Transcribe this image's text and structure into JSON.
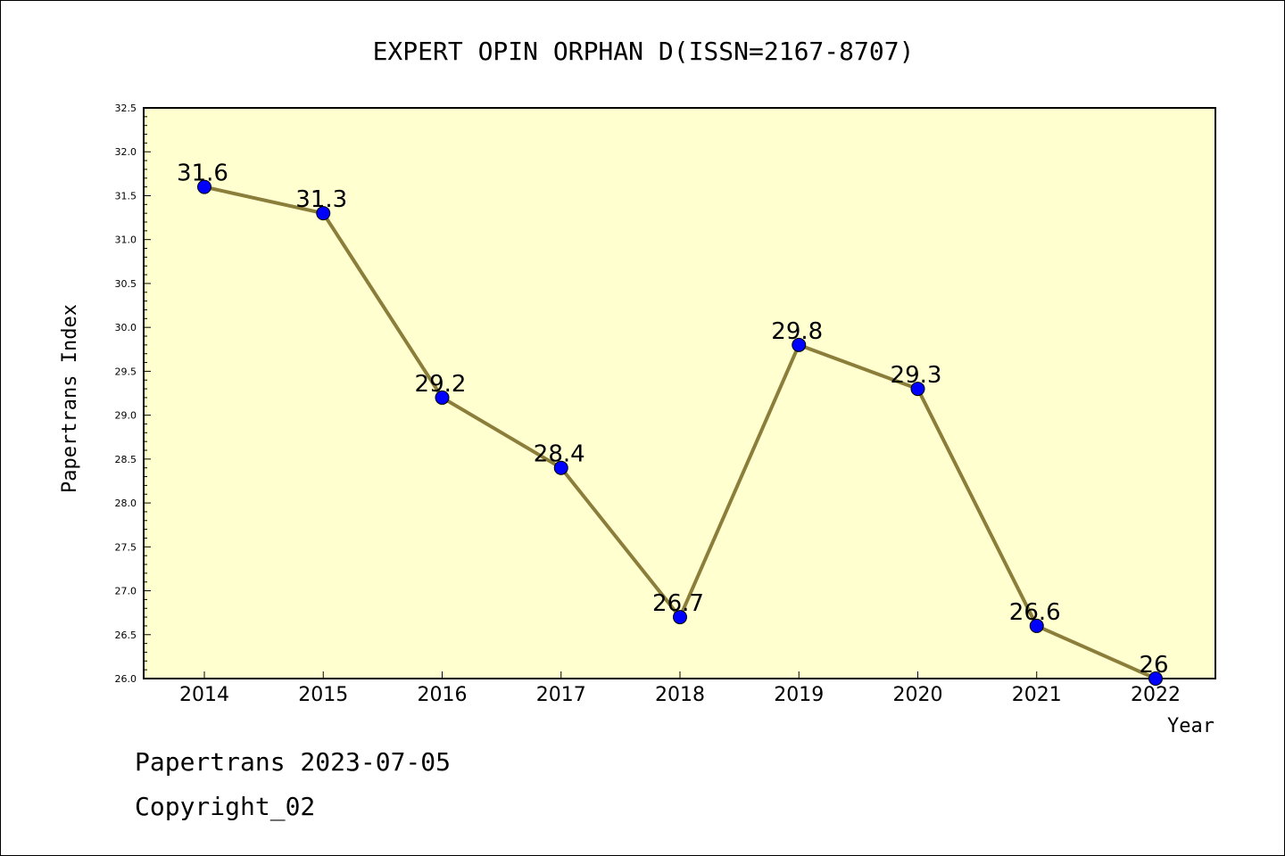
{
  "chart_data": {
    "type": "line",
    "title": "EXPERT OPIN ORPHAN D(ISSN=2167-8707)",
    "xlabel": "Year",
    "ylabel": "Papertrans Index",
    "categories": [
      "2014",
      "2015",
      "2016",
      "2017",
      "2018",
      "2019",
      "2020",
      "2021",
      "2022"
    ],
    "series": [
      {
        "values": [
          31.6,
          31.3,
          29.2,
          28.4,
          26.7,
          29.8,
          29.3,
          26.6,
          26.0
        ],
        "data_labels": [
          "31.6",
          "31.3",
          "29.2",
          "28.4",
          "26.7",
          "29.8",
          "29.3",
          "26.6",
          "26"
        ]
      }
    ],
    "ylim": [
      26.0,
      32.5
    ],
    "yticks": [
      "26.0",
      "26.5",
      "27.0",
      "27.5",
      "28.0",
      "28.5",
      "29.0",
      "29.5",
      "30.0",
      "30.5",
      "31.0",
      "31.5",
      "32.0",
      "32.5"
    ],
    "grid": false,
    "colors": {
      "plot_background": "#ffffd0",
      "line": "#8b7d3a",
      "marker": "#0000ff"
    }
  },
  "footer": {
    "line1": "Papertrans 2023-07-05",
    "line2": "Copyright_02"
  }
}
